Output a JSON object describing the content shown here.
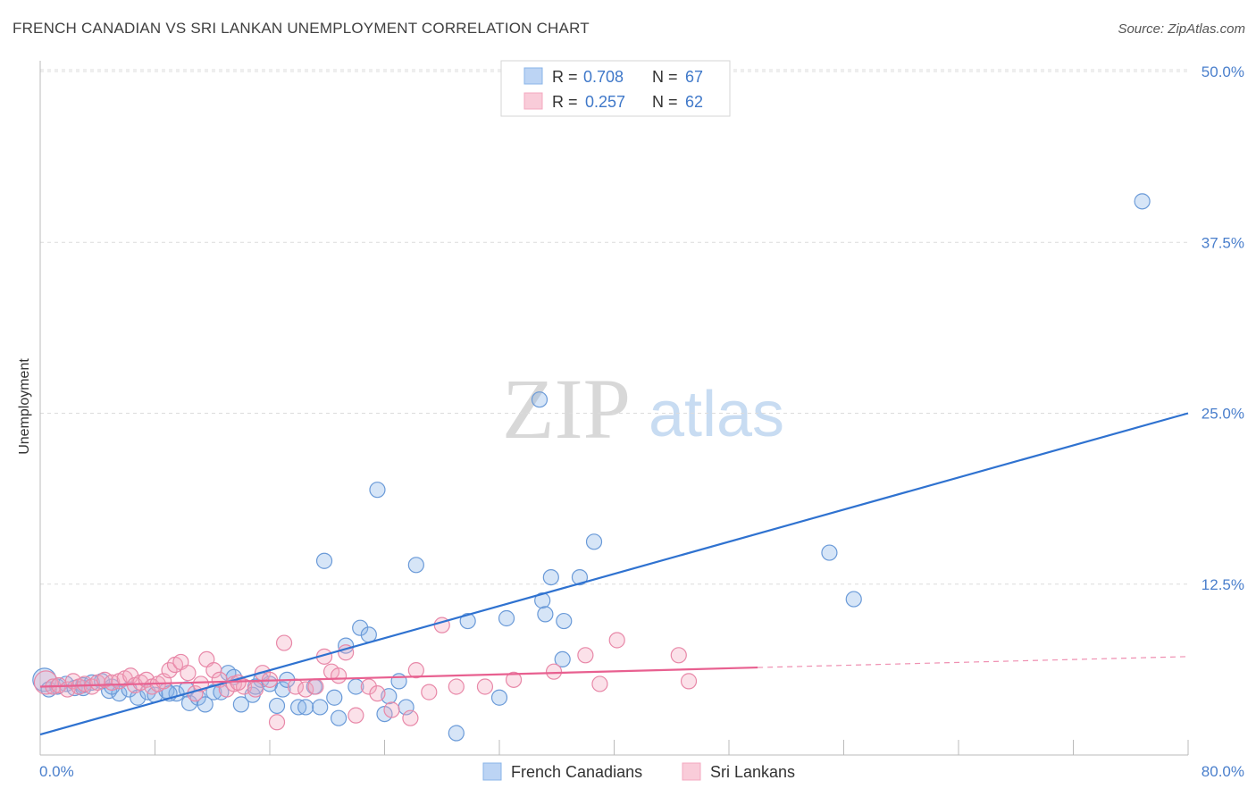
{
  "title": "FRENCH CANADIAN VS SRI LANKAN UNEMPLOYMENT CORRELATION CHART",
  "source": "Source: ZipAtlas.com",
  "watermark": {
    "zip": "ZIP",
    "atlas": "atlas"
  },
  "chart_data": {
    "type": "scatter",
    "xlabel": "",
    "ylabel": "Unemployment",
    "xlim": [
      0,
      80
    ],
    "ylim": [
      0,
      52
    ],
    "x_tick_labels": [
      "0.0%",
      "80.0%"
    ],
    "y_ticks": [
      12.5,
      25.0,
      37.5,
      50.0
    ],
    "y_tick_labels": [
      "12.5%",
      "25.0%",
      "37.5%",
      "50.0%"
    ],
    "grid": true,
    "legend": [
      {
        "name": "French Canadians",
        "r_label": "R =",
        "r": "0.708",
        "n_label": "N =",
        "n": "67",
        "color": "#8ab4e8"
      },
      {
        "name": "Sri Lankans",
        "r_label": "R =",
        "r": "0.257",
        "n_label": "N =",
        "n": "62",
        "color": "#f4a8c0"
      }
    ],
    "series": [
      {
        "name": "French Canadians",
        "color": "#8ab4e8",
        "stroke": "#6a9ad8",
        "trend": {
          "x": [
            0,
            80
          ],
          "y": [
            1.5,
            25.0
          ],
          "color": "#2f72d0"
        },
        "points": [
          [
            0.3,
            5.5
          ],
          [
            0.6,
            4.8
          ],
          [
            1.2,
            5.0
          ],
          [
            1.8,
            5.2
          ],
          [
            2.4,
            4.9
          ],
          [
            3.0,
            5.1
          ],
          [
            3.6,
            5.3
          ],
          [
            4.3,
            5.4
          ],
          [
            4.8,
            4.7
          ],
          [
            5.5,
            4.5
          ],
          [
            6.2,
            4.8
          ],
          [
            6.8,
            4.2
          ],
          [
            7.5,
            4.6
          ],
          [
            8.0,
            4.4
          ],
          [
            8.8,
            4.7
          ],
          [
            9.5,
            4.5
          ],
          [
            10.2,
            4.8
          ],
          [
            10.4,
            3.8
          ],
          [
            11.0,
            4.2
          ],
          [
            11.5,
            3.7
          ],
          [
            12.1,
            4.6
          ],
          [
            12.6,
            4.6
          ],
          [
            13.1,
            6.0
          ],
          [
            13.5,
            5.7
          ],
          [
            14.0,
            3.7
          ],
          [
            14.8,
            4.4
          ],
          [
            15.4,
            5.5
          ],
          [
            16.0,
            5.2
          ],
          [
            16.5,
            3.6
          ],
          [
            16.9,
            4.8
          ],
          [
            17.2,
            5.5
          ],
          [
            18.0,
            3.5
          ],
          [
            18.5,
            3.5
          ],
          [
            19.1,
            5.0
          ],
          [
            19.5,
            3.5
          ],
          [
            19.8,
            14.2
          ],
          [
            20.5,
            4.2
          ],
          [
            20.8,
            2.7
          ],
          [
            21.3,
            8.0
          ],
          [
            22.0,
            5.0
          ],
          [
            22.3,
            9.3
          ],
          [
            22.9,
            8.8
          ],
          [
            23.5,
            19.4
          ],
          [
            24.0,
            3.0
          ],
          [
            24.3,
            4.3
          ],
          [
            25.0,
            5.4
          ],
          [
            25.5,
            3.5
          ],
          [
            26.2,
            13.9
          ],
          [
            29.0,
            1.6
          ],
          [
            29.8,
            9.8
          ],
          [
            32.0,
            4.2
          ],
          [
            32.5,
            10.0
          ],
          [
            34.8,
            26.0
          ],
          [
            35.0,
            11.3
          ],
          [
            35.2,
            10.3
          ],
          [
            35.6,
            13.0
          ],
          [
            36.4,
            7.0
          ],
          [
            36.5,
            9.8
          ],
          [
            37.6,
            13.0
          ],
          [
            38.6,
            15.6
          ],
          [
            55.0,
            14.8
          ],
          [
            56.7,
            11.4
          ],
          [
            76.8,
            40.5
          ],
          [
            3.0,
            4.9
          ],
          [
            5.0,
            5.0
          ],
          [
            9.0,
            4.5
          ],
          [
            15.0,
            5.0
          ]
        ]
      },
      {
        "name": "Sri Lankans",
        "color": "#f4a8c0",
        "stroke": "#e888a8",
        "trend": {
          "x": [
            0,
            50
          ],
          "y": [
            5.0,
            6.4
          ],
          "dashed_to": [
            80,
            7.2
          ],
          "color": "#e86090"
        },
        "points": [
          [
            0.4,
            5.3
          ],
          [
            0.9,
            5.0
          ],
          [
            1.3,
            5.1
          ],
          [
            1.9,
            4.8
          ],
          [
            2.3,
            5.4
          ],
          [
            2.7,
            5.0
          ],
          [
            3.1,
            5.2
          ],
          [
            3.6,
            5.0
          ],
          [
            4.0,
            5.3
          ],
          [
            4.5,
            5.5
          ],
          [
            5.0,
            5.3
          ],
          [
            5.5,
            5.4
          ],
          [
            5.9,
            5.6
          ],
          [
            6.3,
            5.8
          ],
          [
            6.6,
            5.1
          ],
          [
            7.0,
            5.3
          ],
          [
            7.4,
            5.5
          ],
          [
            7.8,
            5.0
          ],
          [
            8.2,
            5.2
          ],
          [
            8.6,
            5.4
          ],
          [
            9.0,
            6.2
          ],
          [
            9.4,
            6.6
          ],
          [
            9.8,
            6.8
          ],
          [
            10.3,
            6.0
          ],
          [
            10.8,
            4.5
          ],
          [
            11.2,
            5.2
          ],
          [
            11.6,
            7.0
          ],
          [
            12.1,
            6.2
          ],
          [
            12.5,
            5.5
          ],
          [
            13.0,
            4.8
          ],
          [
            13.5,
            5.2
          ],
          [
            14.2,
            5.0
          ],
          [
            15.0,
            4.8
          ],
          [
            15.5,
            6.0
          ],
          [
            16.0,
            5.5
          ],
          [
            16.5,
            2.4
          ],
          [
            17.0,
            8.2
          ],
          [
            17.8,
            5.0
          ],
          [
            18.5,
            4.8
          ],
          [
            19.2,
            5.0
          ],
          [
            19.8,
            7.2
          ],
          [
            20.3,
            6.1
          ],
          [
            20.8,
            5.8
          ],
          [
            21.3,
            7.5
          ],
          [
            22.0,
            2.9
          ],
          [
            22.9,
            5.0
          ],
          [
            23.5,
            4.5
          ],
          [
            24.5,
            3.3
          ],
          [
            25.8,
            2.7
          ],
          [
            26.2,
            6.2
          ],
          [
            27.1,
            4.6
          ],
          [
            28.0,
            9.5
          ],
          [
            29.0,
            5.0
          ],
          [
            31.0,
            5.0
          ],
          [
            33.0,
            5.5
          ],
          [
            35.8,
            6.1
          ],
          [
            38.0,
            7.3
          ],
          [
            39.0,
            5.2
          ],
          [
            40.2,
            8.4
          ],
          [
            44.5,
            7.3
          ],
          [
            45.2,
            5.4
          ],
          [
            13.8,
            5.3
          ]
        ]
      }
    ]
  }
}
